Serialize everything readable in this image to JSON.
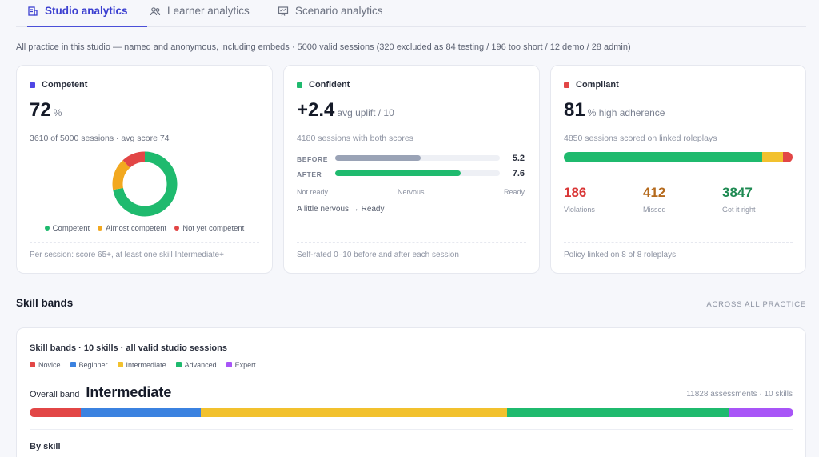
{
  "tabs": [
    {
      "label": "Studio analytics",
      "icon": "building-icon",
      "active": true
    },
    {
      "label": "Learner analytics",
      "icon": "users-icon",
      "active": false
    },
    {
      "label": "Scenario analytics",
      "icon": "presentation-icon",
      "active": false
    }
  ],
  "summary": "All practice in this studio — named and anonymous, including embeds · 5000 valid sessions (320 excluded as 84 testing / 196 too short / 12 demo / 28 admin)",
  "competent": {
    "title": "Competent",
    "color": "#4f46e5",
    "value": "72",
    "unit": "%",
    "sub": "3610 of 5000 sessions · avg score 74",
    "donut": [
      {
        "label": "Competent",
        "fraction": 0.72,
        "color": "#1fba6e"
      },
      {
        "label": "Almost competent",
        "fraction": 0.16,
        "color": "#f2a81f"
      },
      {
        "label": "Not yet competent",
        "fraction": 0.12,
        "color": "#e24646"
      }
    ],
    "footer": "Per session: score 65+, at least one skill Intermediate+"
  },
  "confident": {
    "title": "Confident",
    "color": "#1fba6e",
    "value": "+2.4",
    "unit": "avg uplift / 10",
    "sub": "4180 sessions with both scores",
    "before_label": "BEFORE",
    "before_value": "5.2",
    "before_fraction": 0.52,
    "before_color": "#9aa3b6",
    "after_label": "AFTER",
    "after_value": "7.6",
    "after_fraction": 0.76,
    "after_color": "#1fba6e",
    "scale_left": "Not ready",
    "scale_mid": "Nervous",
    "scale_right": "Ready",
    "note": "A little nervous → Ready",
    "footer": "Self-rated 0–10 before and after each session"
  },
  "compliant": {
    "title": "Compliant",
    "color": "#e24646",
    "value": "81",
    "unit": "% high adherence",
    "sub": "4850 sessions scored on linked roleplays",
    "stack": [
      {
        "value": 3847,
        "color": "#1fba6e"
      },
      {
        "value": 412,
        "color": "#f2c12e"
      },
      {
        "value": 186,
        "color": "#e24646"
      }
    ],
    "violations": "186",
    "violations_label": "Violations",
    "violations_color": "#d93636",
    "missed": "412",
    "missed_label": "Missed",
    "missed_color": "#b56a1d",
    "gotit": "3847",
    "gotit_label": "Got it right",
    "gotit_color": "#1e8a52",
    "footer": "Policy linked on 8 of 8 roleplays"
  },
  "skill_section": {
    "title": "Skill bands",
    "right_label": "ACROSS ALL PRACTICE"
  },
  "skill_card": {
    "title": "Skill bands · 10 skills · all valid studio sessions",
    "legend": [
      {
        "label": "Novice",
        "color": "#e24646"
      },
      {
        "label": "Beginner",
        "color": "#3b82e0"
      },
      {
        "label": "Intermediate",
        "color": "#f2c12e"
      },
      {
        "label": "Advanced",
        "color": "#1fba6e"
      },
      {
        "label": "Expert",
        "color": "#a855f7"
      }
    ],
    "band_fractions": [
      0.067,
      0.157,
      0.401,
      0.29,
      0.085
    ],
    "overall_label": "Overall band",
    "overall_value": "Intermediate",
    "assessments": "11828 assessments · 10 skills",
    "by_skill": "By skill"
  }
}
